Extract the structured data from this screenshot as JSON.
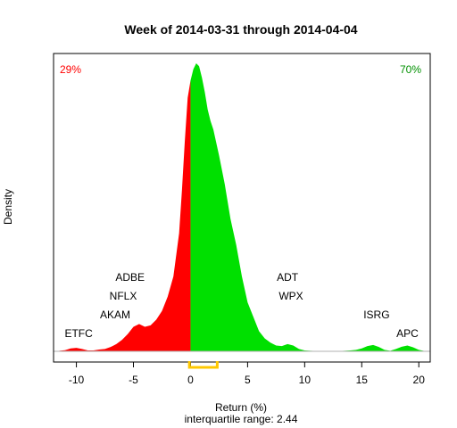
{
  "chart_data": {
    "type": "area",
    "title": "Week of 2014-03-31 through 2014-04-04",
    "xlabel": "Return (%)",
    "subtitle": "interquartile range: 2.44",
    "ylabel": "Density",
    "xlim": [
      -12,
      21
    ],
    "xticks": [
      -10,
      -5,
      0,
      5,
      10,
      15,
      20
    ],
    "x": [
      -11.5,
      -11,
      -10.5,
      -10,
      -9.5,
      -9,
      -8.5,
      -8,
      -7.5,
      -7,
      -6.5,
      -6,
      -5.5,
      -5,
      -4.5,
      -4,
      -3.5,
      -3,
      -2.5,
      -2,
      -1.5,
      -1,
      -0.75,
      -0.5,
      -0.25,
      0,
      0.25,
      0.5,
      0.75,
      1,
      1.25,
      1.5,
      1.75,
      2,
      2.5,
      3,
      3.5,
      4,
      4.5,
      5,
      5.5,
      6,
      6.5,
      7,
      7.5,
      8,
      8.5,
      9,
      9.5,
      10,
      10.5,
      11,
      11.5,
      12,
      12.5,
      13,
      13.5,
      14,
      14.5,
      15,
      15.5,
      16,
      16.5,
      17,
      17.5,
      18,
      18.5,
      19,
      19.5,
      20,
      20.5
    ],
    "density": [
      0.002,
      0.004,
      0.01,
      0.012,
      0.008,
      0.003,
      0.003,
      0.006,
      0.008,
      0.015,
      0.025,
      0.04,
      0.06,
      0.085,
      0.095,
      0.085,
      0.09,
      0.11,
      0.14,
      0.19,
      0.26,
      0.41,
      0.56,
      0.73,
      0.88,
      0.94,
      0.98,
      1.0,
      0.99,
      0.95,
      0.9,
      0.84,
      0.8,
      0.77,
      0.68,
      0.58,
      0.46,
      0.37,
      0.26,
      0.17,
      0.12,
      0.07,
      0.045,
      0.03,
      0.02,
      0.018,
      0.025,
      0.02,
      0.008,
      0.003,
      0.002,
      0.001,
      0.001,
      0.001,
      0.001,
      0.001,
      0.002,
      0.003,
      0.005,
      0.01,
      0.018,
      0.022,
      0.015,
      0.005,
      0.002,
      0.008,
      0.016,
      0.02,
      0.014,
      0.005,
      0.001
    ],
    "split_at": 0,
    "colors": {
      "negative": "#ff0000",
      "positive": "#00e000",
      "iqr": "#ffc800",
      "base": "#b0b0b0"
    },
    "left_pct": {
      "text": "29%",
      "color": "#ff0000"
    },
    "right_pct": {
      "text": "70%",
      "color": "#009000"
    },
    "iqr_range": [
      -0.1,
      2.34
    ],
    "annotations": [
      {
        "text": "ADBE",
        "x": -5.3,
        "y": 0.245
      },
      {
        "text": "NFLX",
        "x": -5.9,
        "y": 0.18
      },
      {
        "text": "AKAM",
        "x": -6.6,
        "y": 0.115
      },
      {
        "text": "ETFC",
        "x": -9.8,
        "y": 0.05
      },
      {
        "text": "ADT",
        "x": 8.5,
        "y": 0.245
      },
      {
        "text": "WPX",
        "x": 8.8,
        "y": 0.18
      },
      {
        "text": "ISRG",
        "x": 16.3,
        "y": 0.115
      },
      {
        "text": "APC",
        "x": 19.0,
        "y": 0.05
      }
    ]
  }
}
